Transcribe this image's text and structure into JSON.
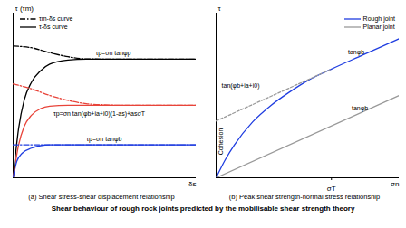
{
  "chart_data": [
    {
      "type": "line",
      "title": "(a) Shear stress-shear displacement relationship",
      "x_label": "δs",
      "y_label": "τ (τm)",
      "xlim": [
        0,
        10
      ],
      "ylim": [
        0,
        1
      ],
      "xticks": [],
      "yticks": [],
      "tick_labels": false,
      "legend": "top-left",
      "series": [
        {
          "name": "τm-δs curve",
          "color": "#000000",
          "line_style": "dashdot",
          "x": [
            0,
            1,
            2,
            3,
            4,
            6,
            10
          ],
          "values": [
            0.8,
            0.79,
            0.76,
            0.735,
            0.722,
            0.72,
            0.72
          ]
        },
        {
          "name": "τ-δs curve",
          "color": "#000000",
          "line_style": "solid",
          "x": [
            0,
            0.3,
            0.6,
            1,
            1.5,
            2,
            3,
            4,
            6,
            10
          ],
          "values": [
            0,
            0.3,
            0.47,
            0.58,
            0.65,
            0.69,
            0.715,
            0.72,
            0.72,
            0.72
          ]
        },
        {
          "name": "τm-δs curve",
          "color": "#e8443a",
          "line_style": "dashdot",
          "x": [
            0,
            1,
            2,
            3,
            4,
            5,
            6,
            10
          ],
          "values": [
            0.57,
            0.54,
            0.5,
            0.47,
            0.45,
            0.443,
            0.44,
            0.44
          ]
        },
        {
          "name": "τ-δs curve",
          "color": "#e8443a",
          "line_style": "solid",
          "x": [
            0,
            0.3,
            0.6,
            1,
            1.5,
            2,
            3,
            4,
            6,
            10
          ],
          "values": [
            0,
            0.2,
            0.31,
            0.38,
            0.42,
            0.435,
            0.44,
            0.44,
            0.44,
            0.44
          ]
        },
        {
          "name": "τm-δs curve",
          "color": "#1f3de0",
          "line_style": "dashdot",
          "x": [
            0,
            10
          ],
          "values": [
            0.2,
            0.2
          ]
        },
        {
          "name": "τ-δs curve",
          "color": "#1f3de0",
          "line_style": "solid",
          "x": [
            0,
            0.2,
            0.5,
            1,
            1.5,
            2,
            3,
            6,
            10
          ],
          "values": [
            0,
            0.1,
            0.15,
            0.18,
            0.195,
            0.2,
            0.2,
            0.2,
            0.2
          ]
        }
      ],
      "annotations": [
        "τp=σn tanφp",
        "τp=σn tan(φb+ia+i0)(1-as)+asσT",
        "τp=σn tanφb"
      ]
    },
    {
      "type": "line",
      "title": "(b) Peak shear strength-normal stress relationship",
      "x_label": "σn",
      "y_label": "τ",
      "xlim": [
        0,
        10
      ],
      "ylim": [
        0,
        1
      ],
      "xticks": [
        {
          "value": 6.3,
          "label": "σT"
        }
      ],
      "yticks": [],
      "tick_labels": "x",
      "legend": "top-right",
      "series": [
        {
          "name": "Rough joint",
          "color": "#1f3de0",
          "line_style": "solid",
          "x": [
            0,
            0.5,
            1,
            2,
            3,
            4,
            5,
            6.3,
            8,
            10
          ],
          "values": [
            0,
            0.11,
            0.2,
            0.34,
            0.44,
            0.52,
            0.59,
            0.66,
            0.745,
            0.845
          ]
        },
        {
          "name": "Planar joint",
          "color": "#999999",
          "line_style": "solid",
          "x": [
            0,
            10
          ],
          "values": [
            0,
            0.5
          ]
        },
        {
          "color": "#999999",
          "line_style": "dashed",
          "x": [
            0,
            6.3
          ],
          "values": [
            0.345,
            0.66
          ]
        }
      ],
      "annotations": [
        "tanφb",
        "tanφb",
        "tan(φb+ia+i0)",
        "Cohesion"
      ]
    }
  ],
  "caption": "Shear behaviour of rough rock joints predicted by the mobilisable shear strength theory"
}
